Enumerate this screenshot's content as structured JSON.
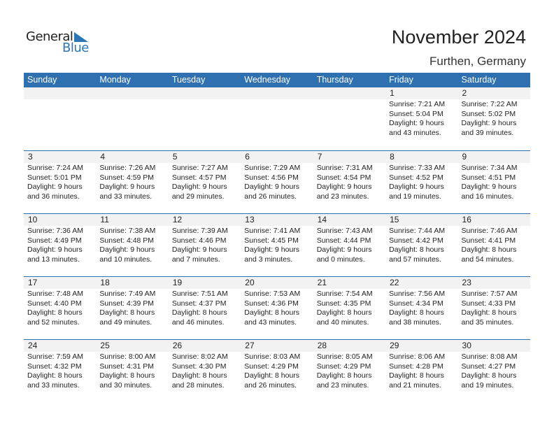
{
  "logo": {
    "word1": "General",
    "word2": "Blue"
  },
  "header": {
    "title": "November 2024",
    "location": "Furthen, Germany"
  },
  "weekdays": [
    "Sunday",
    "Monday",
    "Tuesday",
    "Wednesday",
    "Thursday",
    "Friday",
    "Saturday"
  ],
  "colors": {
    "accent": "#2e70b0",
    "date_band": "#f2f2f2"
  },
  "weeks": [
    [
      null,
      null,
      null,
      null,
      null,
      {
        "day": "1",
        "sunrise": "Sunrise: 7:21 AM",
        "sunset": "Sunset: 5:04 PM",
        "daylight1": "Daylight: 9 hours",
        "daylight2": "and 43 minutes."
      },
      {
        "day": "2",
        "sunrise": "Sunrise: 7:22 AM",
        "sunset": "Sunset: 5:02 PM",
        "daylight1": "Daylight: 9 hours",
        "daylight2": "and 39 minutes."
      }
    ],
    [
      {
        "day": "3",
        "sunrise": "Sunrise: 7:24 AM",
        "sunset": "Sunset: 5:01 PM",
        "daylight1": "Daylight: 9 hours",
        "daylight2": "and 36 minutes."
      },
      {
        "day": "4",
        "sunrise": "Sunrise: 7:26 AM",
        "sunset": "Sunset: 4:59 PM",
        "daylight1": "Daylight: 9 hours",
        "daylight2": "and 33 minutes."
      },
      {
        "day": "5",
        "sunrise": "Sunrise: 7:27 AM",
        "sunset": "Sunset: 4:57 PM",
        "daylight1": "Daylight: 9 hours",
        "daylight2": "and 29 minutes."
      },
      {
        "day": "6",
        "sunrise": "Sunrise: 7:29 AM",
        "sunset": "Sunset: 4:56 PM",
        "daylight1": "Daylight: 9 hours",
        "daylight2": "and 26 minutes."
      },
      {
        "day": "7",
        "sunrise": "Sunrise: 7:31 AM",
        "sunset": "Sunset: 4:54 PM",
        "daylight1": "Daylight: 9 hours",
        "daylight2": "and 23 minutes."
      },
      {
        "day": "8",
        "sunrise": "Sunrise: 7:33 AM",
        "sunset": "Sunset: 4:52 PM",
        "daylight1": "Daylight: 9 hours",
        "daylight2": "and 19 minutes."
      },
      {
        "day": "9",
        "sunrise": "Sunrise: 7:34 AM",
        "sunset": "Sunset: 4:51 PM",
        "daylight1": "Daylight: 9 hours",
        "daylight2": "and 16 minutes."
      }
    ],
    [
      {
        "day": "10",
        "sunrise": "Sunrise: 7:36 AM",
        "sunset": "Sunset: 4:49 PM",
        "daylight1": "Daylight: 9 hours",
        "daylight2": "and 13 minutes."
      },
      {
        "day": "11",
        "sunrise": "Sunrise: 7:38 AM",
        "sunset": "Sunset: 4:48 PM",
        "daylight1": "Daylight: 9 hours",
        "daylight2": "and 10 minutes."
      },
      {
        "day": "12",
        "sunrise": "Sunrise: 7:39 AM",
        "sunset": "Sunset: 4:46 PM",
        "daylight1": "Daylight: 9 hours",
        "daylight2": "and 7 minutes."
      },
      {
        "day": "13",
        "sunrise": "Sunrise: 7:41 AM",
        "sunset": "Sunset: 4:45 PM",
        "daylight1": "Daylight: 9 hours",
        "daylight2": "and 3 minutes."
      },
      {
        "day": "14",
        "sunrise": "Sunrise: 7:43 AM",
        "sunset": "Sunset: 4:44 PM",
        "daylight1": "Daylight: 9 hours",
        "daylight2": "and 0 minutes."
      },
      {
        "day": "15",
        "sunrise": "Sunrise: 7:44 AM",
        "sunset": "Sunset: 4:42 PM",
        "daylight1": "Daylight: 8 hours",
        "daylight2": "and 57 minutes."
      },
      {
        "day": "16",
        "sunrise": "Sunrise: 7:46 AM",
        "sunset": "Sunset: 4:41 PM",
        "daylight1": "Daylight: 8 hours",
        "daylight2": "and 54 minutes."
      }
    ],
    [
      {
        "day": "17",
        "sunrise": "Sunrise: 7:48 AM",
        "sunset": "Sunset: 4:40 PM",
        "daylight1": "Daylight: 8 hours",
        "daylight2": "and 52 minutes."
      },
      {
        "day": "18",
        "sunrise": "Sunrise: 7:49 AM",
        "sunset": "Sunset: 4:39 PM",
        "daylight1": "Daylight: 8 hours",
        "daylight2": "and 49 minutes."
      },
      {
        "day": "19",
        "sunrise": "Sunrise: 7:51 AM",
        "sunset": "Sunset: 4:37 PM",
        "daylight1": "Daylight: 8 hours",
        "daylight2": "and 46 minutes."
      },
      {
        "day": "20",
        "sunrise": "Sunrise: 7:53 AM",
        "sunset": "Sunset: 4:36 PM",
        "daylight1": "Daylight: 8 hours",
        "daylight2": "and 43 minutes."
      },
      {
        "day": "21",
        "sunrise": "Sunrise: 7:54 AM",
        "sunset": "Sunset: 4:35 PM",
        "daylight1": "Daylight: 8 hours",
        "daylight2": "and 40 minutes."
      },
      {
        "day": "22",
        "sunrise": "Sunrise: 7:56 AM",
        "sunset": "Sunset: 4:34 PM",
        "daylight1": "Daylight: 8 hours",
        "daylight2": "and 38 minutes."
      },
      {
        "day": "23",
        "sunrise": "Sunrise: 7:57 AM",
        "sunset": "Sunset: 4:33 PM",
        "daylight1": "Daylight: 8 hours",
        "daylight2": "and 35 minutes."
      }
    ],
    [
      {
        "day": "24",
        "sunrise": "Sunrise: 7:59 AM",
        "sunset": "Sunset: 4:32 PM",
        "daylight1": "Daylight: 8 hours",
        "daylight2": "and 33 minutes."
      },
      {
        "day": "25",
        "sunrise": "Sunrise: 8:00 AM",
        "sunset": "Sunset: 4:31 PM",
        "daylight1": "Daylight: 8 hours",
        "daylight2": "and 30 minutes."
      },
      {
        "day": "26",
        "sunrise": "Sunrise: 8:02 AM",
        "sunset": "Sunset: 4:30 PM",
        "daylight1": "Daylight: 8 hours",
        "daylight2": "and 28 minutes."
      },
      {
        "day": "27",
        "sunrise": "Sunrise: 8:03 AM",
        "sunset": "Sunset: 4:29 PM",
        "daylight1": "Daylight: 8 hours",
        "daylight2": "and 26 minutes."
      },
      {
        "day": "28",
        "sunrise": "Sunrise: 8:05 AM",
        "sunset": "Sunset: 4:29 PM",
        "daylight1": "Daylight: 8 hours",
        "daylight2": "and 23 minutes."
      },
      {
        "day": "29",
        "sunrise": "Sunrise: 8:06 AM",
        "sunset": "Sunset: 4:28 PM",
        "daylight1": "Daylight: 8 hours",
        "daylight2": "and 21 minutes."
      },
      {
        "day": "30",
        "sunrise": "Sunrise: 8:08 AM",
        "sunset": "Sunset: 4:27 PM",
        "daylight1": "Daylight: 8 hours",
        "daylight2": "and 19 minutes."
      }
    ]
  ]
}
